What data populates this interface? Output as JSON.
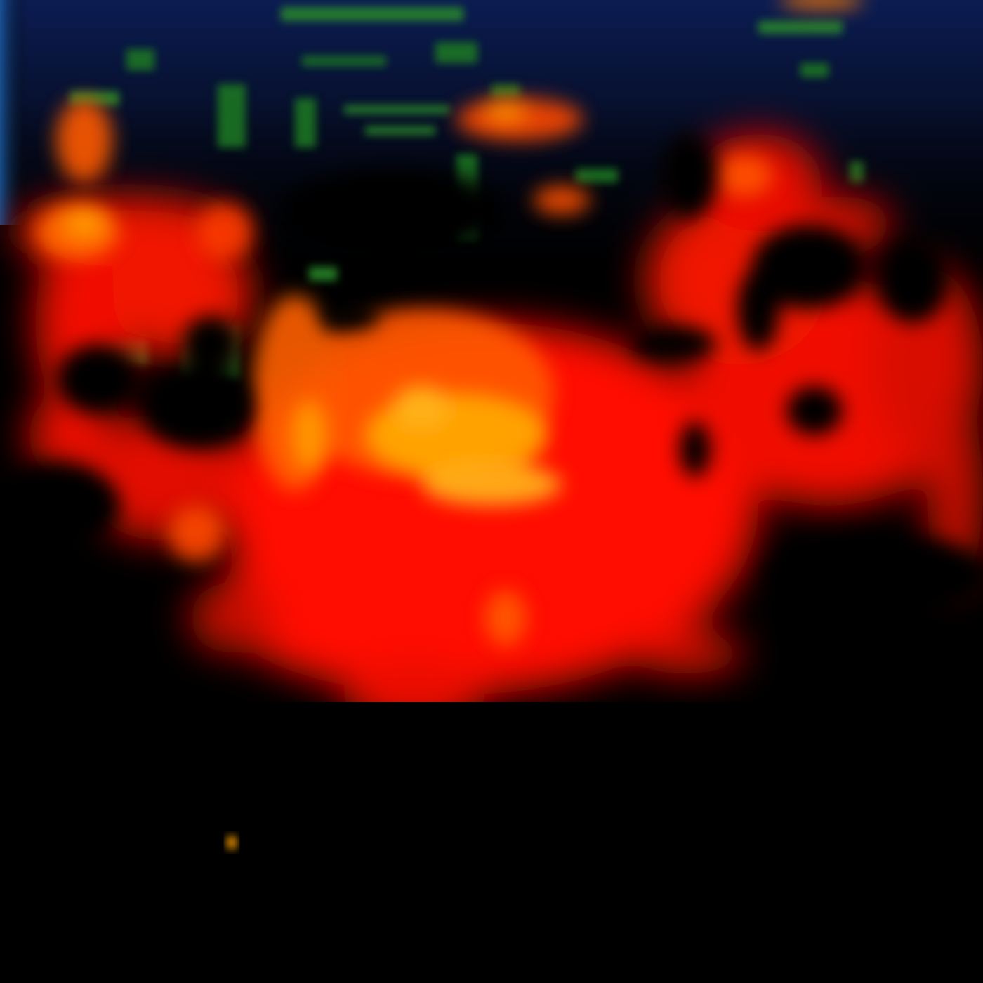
{
  "image": {
    "kind": "false-color thermal / infrared heat map",
    "text": "",
    "palette": {
      "background": "#000000",
      "cool_top": "#0a1440",
      "green_sparse": "#1e8c2a",
      "warm_red": "#ff1000",
      "hot_orange": "#ff6a00",
      "hottest_yellow": "#ffc21a",
      "edge_blue": "#1c5fa8"
    }
  }
}
